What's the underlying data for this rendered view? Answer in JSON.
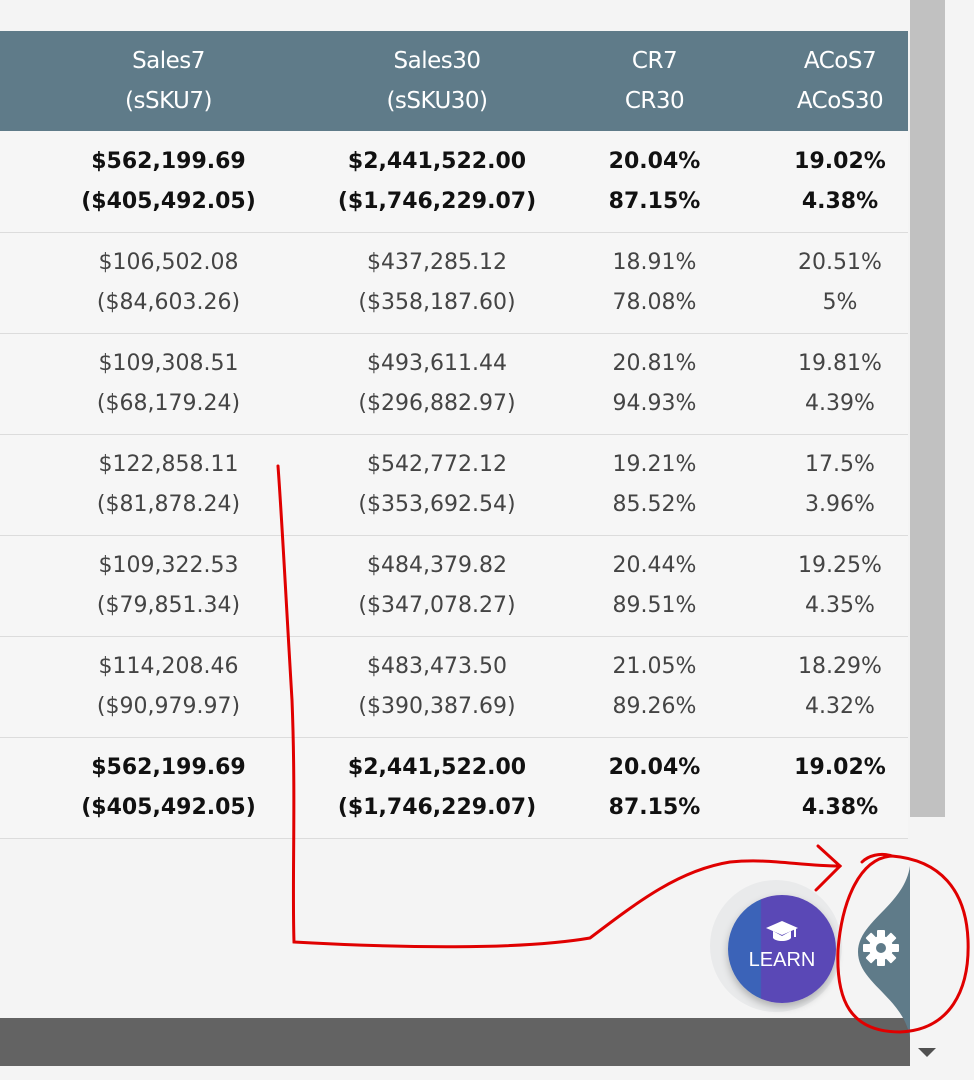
{
  "table": {
    "headers": [
      {
        "line1": "Sales7",
        "line2": "(sSKU7)"
      },
      {
        "line1": "Sales30",
        "line2": "(sSKU30)"
      },
      {
        "line1": "CR7",
        "line2": "CR30"
      },
      {
        "line1": "ACoS7",
        "line2": "ACoS30"
      }
    ],
    "rows": [
      {
        "bold": true,
        "cells": [
          [
            "$562,199.69",
            "($405,492.05)"
          ],
          [
            "$2,441,522.00",
            "($1,746,229.07)"
          ],
          [
            "20.04%",
            "87.15%"
          ],
          [
            "19.02%",
            "4.38%"
          ]
        ]
      },
      {
        "bold": false,
        "cells": [
          [
            "$106,502.08",
            "($84,603.26)"
          ],
          [
            "$437,285.12",
            "($358,187.60)"
          ],
          [
            "18.91%",
            "78.08%"
          ],
          [
            "20.51%",
            "5%"
          ]
        ]
      },
      {
        "bold": false,
        "cells": [
          [
            "$109,308.51",
            "($68,179.24)"
          ],
          [
            "$493,611.44",
            "($296,882.97)"
          ],
          [
            "20.81%",
            "94.93%"
          ],
          [
            "19.81%",
            "4.39%"
          ]
        ]
      },
      {
        "bold": false,
        "cells": [
          [
            "$122,858.11",
            "($81,878.24)"
          ],
          [
            "$542,772.12",
            "($353,692.54)"
          ],
          [
            "19.21%",
            "85.52%"
          ],
          [
            "17.5%",
            "3.96%"
          ]
        ]
      },
      {
        "bold": false,
        "cells": [
          [
            "$109,322.53",
            "($79,851.34)"
          ],
          [
            "$484,379.82",
            "($347,078.27)"
          ],
          [
            "20.44%",
            "89.51%"
          ],
          [
            "19.25%",
            "4.35%"
          ]
        ]
      },
      {
        "bold": false,
        "cells": [
          [
            "$114,208.46",
            "($90,979.97)"
          ],
          [
            "$483,473.50",
            "($390,387.69)"
          ],
          [
            "21.05%",
            "89.26%"
          ],
          [
            "18.29%",
            "4.32%"
          ]
        ]
      },
      {
        "bold": true,
        "cells": [
          [
            "$562,199.69",
            "($405,492.05)"
          ],
          [
            "$2,441,522.00",
            "($1,746,229.07)"
          ],
          [
            "20.04%",
            "87.15%"
          ],
          [
            "19.02%",
            "4.38%"
          ]
        ]
      }
    ]
  },
  "learn_button": {
    "label": "LEARN",
    "icon": "graduation-cap-icon"
  },
  "settings_button": {
    "icon": "gear-icon"
  },
  "colors": {
    "header_bg": "#5f7b89",
    "learn_left": "#3b63b8",
    "learn_right": "#5a48b6",
    "annotation": "#e00000",
    "footer_bar": "#636363"
  }
}
